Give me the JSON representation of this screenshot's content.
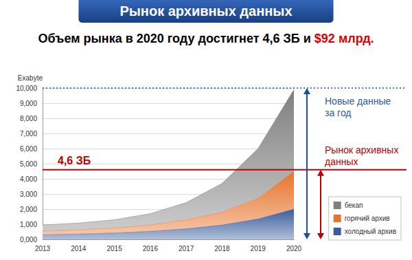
{
  "chart_data": {
    "type": "area",
    "title": "Рынок архивных данных",
    "subtitle_parts": [
      {
        "text": "Объем рынка в 2020 году достигнет 4,6 ЗБ и ",
        "color": "#000000"
      },
      {
        "text": "$92 млрд.",
        "color": "#e00000"
      }
    ],
    "y_label": "Exabyte",
    "categories": [
      "2013",
      "2014",
      "2015",
      "2016",
      "2017",
      "2018",
      "2019",
      "2020"
    ],
    "series": [
      {
        "name": "холодный архив",
        "color": "#3b5e9e",
        "values": [
          300,
          350,
          420,
          530,
          700,
          950,
          1350,
          2000
        ]
      },
      {
        "name": "горячий архив",
        "color": "#e8732a",
        "values": [
          250,
          280,
          330,
          420,
          580,
          850,
          1350,
          2500
        ]
      },
      {
        "name": "бекап",
        "color": "#7f7f7f",
        "values": [
          400,
          450,
          550,
          750,
          1150,
          1900,
          3300,
          5400
        ]
      }
    ],
    "ylim": [
      0,
      10000
    ],
    "yticks": [
      {
        "value": 0,
        "label": "0,000"
      },
      {
        "value": 1000,
        "label": "1,000"
      },
      {
        "value": 2000,
        "label": "2,000"
      },
      {
        "value": 3000,
        "label": "3,000"
      },
      {
        "value": 4000,
        "label": "4,000"
      },
      {
        "value": 5000,
        "label": "5,000"
      },
      {
        "value": 6000,
        "label": "6,000"
      },
      {
        "value": 7000,
        "label": "7,000"
      },
      {
        "value": 8000,
        "label": "8,000"
      },
      {
        "value": 9000,
        "label": "9,000"
      },
      {
        "value": 10000,
        "label": "10,000"
      }
    ],
    "grid": true,
    "stacked": true,
    "legend": "bottom-right",
    "reference_lines": [
      {
        "value": 4600,
        "label": "4,6 ЗБ",
        "color": "#c00000",
        "line_style": "solid"
      },
      {
        "value": 10000,
        "color": "#1f4e9c",
        "line_style": "dotted"
      }
    ],
    "annotations": [
      {
        "text": "Новые данные\nза год",
        "color": "#2e5a9c"
      },
      {
        "text": "Рынок архивных\nданных",
        "color": "#c00000"
      }
    ]
  }
}
